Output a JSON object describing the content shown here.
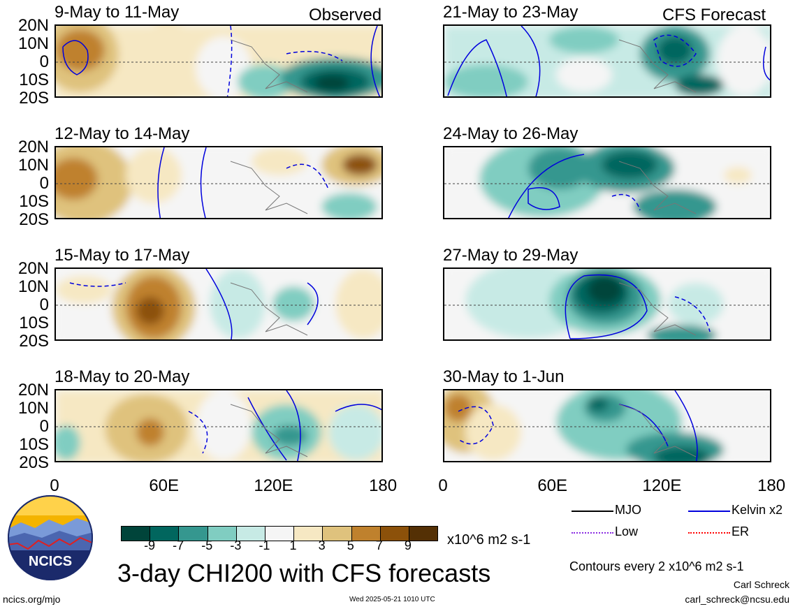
{
  "panels": {
    "observed": [
      {
        "title": "9-May to 11-May",
        "tag": "Observed"
      },
      {
        "title": "12-May to 14-May",
        "tag": ""
      },
      {
        "title": "15-May to 17-May",
        "tag": ""
      },
      {
        "title": "18-May to 20-May",
        "tag": ""
      }
    ],
    "forecast": [
      {
        "title": "21-May to 23-May",
        "tag": "CFS Forecast"
      },
      {
        "title": "24-May to 26-May",
        "tag": ""
      },
      {
        "title": "27-May to 29-May",
        "tag": ""
      },
      {
        "title": "30-May to 1-Jun",
        "tag": ""
      }
    ]
  },
  "lat_labels": [
    "20N",
    "10N",
    "0",
    "10S",
    "20S"
  ],
  "lon_labels": [
    "0",
    "60E",
    "120E",
    "180"
  ],
  "colorbar": {
    "colors": [
      "#00443a",
      "#01665e",
      "#35978f",
      "#80cdc1",
      "#c7eae5",
      "#f5f5f5",
      "#f6e8c3",
      "#dfc27d",
      "#bf812d",
      "#8c510a",
      "#543005"
    ],
    "labels": [
      "-9",
      "-7",
      "-5",
      "-3",
      "-1",
      "1",
      "3",
      "5",
      "7",
      "9"
    ],
    "units": "x10^6 m2 s-1"
  },
  "legend": {
    "items": [
      {
        "label": "MJO",
        "color": "#000000",
        "style": "solid"
      },
      {
        "label": "Kelvin x2",
        "color": "#0000dd",
        "style": "solid"
      },
      {
        "label": "Low",
        "color": "#8a2be2",
        "style": "dotted"
      },
      {
        "label": "ER",
        "color": "#ff0000",
        "style": "dotted"
      }
    ],
    "contour_note": "Contours every 2 x10^6 m2 s-1"
  },
  "title": "3-day CHI200 with CFS forecasts",
  "logo_text": "NCICS",
  "footer": {
    "url": "ncics.org/mjo",
    "timestamp": "Wed 2025-05-21 1010 UTC",
    "author": "Carl Schreck",
    "email": "carl_schreck@ncsu.edu"
  }
}
